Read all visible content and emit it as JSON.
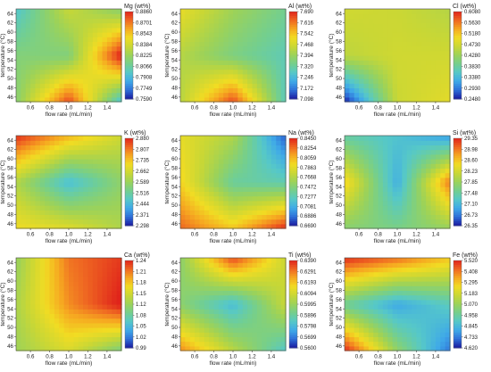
{
  "figure": {
    "background": "#ffffff"
  },
  "colormap": [
    "#1a1aa0",
    "#2f6fd8",
    "#3fa9e8",
    "#56c8c8",
    "#74cf8e",
    "#9bd25a",
    "#c9d735",
    "#f1dc23",
    "#f6a821",
    "#ef6722",
    "#e0241b"
  ],
  "chart_data": [
    {
      "type": "heatmap",
      "title": "Mg (wt%)",
      "xlabel": "flow rate (mL/min)",
      "ylabel": "temperature (°C)",
      "xlim": [
        0.45,
        1.55
      ],
      "ylim": [
        45,
        65
      ],
      "xticks": [
        "0.6",
        "0.8",
        "1.0",
        "1.2",
        "1.4"
      ],
      "yticks": [
        "46",
        "48",
        "50",
        "52",
        "54",
        "56",
        "58",
        "60",
        "62",
        "64"
      ],
      "x": [
        0.5,
        1.0,
        1.5
      ],
      "y": [
        45,
        55,
        65
      ],
      "z": [
        [
          0.822,
          0.88,
          0.8
        ],
        [
          0.815,
          0.814,
          0.882
        ],
        [
          0.799,
          0.835,
          0.818
        ]
      ],
      "colorbar_ticks": [
        "0.8860",
        "0.8701",
        "0.8543",
        "0.8384",
        "0.8225",
        "0.8066",
        "0.7908",
        "0.7749",
        "0.7590"
      ],
      "colorbar_range": [
        0.759,
        0.886
      ]
    },
    {
      "type": "heatmap",
      "title": "Al (wt%)",
      "xlabel": "flow rate (mL/min)",
      "ylabel": "temperature (°C)",
      "xlim": [
        0.45,
        1.55
      ],
      "ylim": [
        45,
        65
      ],
      "xticks": [
        "0.6",
        "0.8",
        "1.0",
        "1.2",
        "1.4"
      ],
      "yticks": [
        "46",
        "48",
        "50",
        "52",
        "54",
        "56",
        "58",
        "60",
        "62",
        "64"
      ],
      "x": [
        0.5,
        1.0,
        1.5
      ],
      "y": [
        45,
        55,
        65
      ],
      "z": [
        [
          7.45,
          7.66,
          7.32
        ],
        [
          7.42,
          7.35,
          7.3
        ],
        [
          7.49,
          7.4,
          7.34
        ]
      ],
      "colorbar_ticks": [
        "7.690",
        "7.616",
        "7.542",
        "7.468",
        "7.394",
        "7.320",
        "7.246",
        "7.172",
        "7.098"
      ],
      "colorbar_range": [
        7.098,
        7.69
      ]
    },
    {
      "type": "heatmap",
      "title": "Cl (wt%)",
      "xlabel": "flow rate (mL/min)",
      "ylabel": "temperature (°C)",
      "xlim": [
        0.45,
        1.55
      ],
      "ylim": [
        45,
        65
      ],
      "xticks": [
        "0.6",
        "0.8",
        "1.0",
        "1.2",
        "1.4"
      ],
      "yticks": [
        "46",
        "48",
        "50",
        "52",
        "54",
        "56",
        "58",
        "60",
        "62",
        "64"
      ],
      "x": [
        0.5,
        1.0,
        1.5
      ],
      "y": [
        45,
        55,
        65
      ],
      "z": [
        [
          0.265,
          0.465,
          0.485
        ],
        [
          0.455,
          0.47,
          0.47
        ],
        [
          0.47,
          0.465,
          0.45
        ]
      ],
      "colorbar_ticks": [
        "0.6080",
        "0.5630",
        "0.5180",
        "0.4730",
        "0.4280",
        "0.3830",
        "0.3380",
        "0.2930",
        "0.2480"
      ],
      "colorbar_range": [
        0.248,
        0.608
      ]
    },
    {
      "type": "heatmap",
      "title": "K (wt%)",
      "xlabel": "flow rate (mL/min)",
      "ylabel": "temperature (°C)",
      "xlim": [
        0.45,
        1.55
      ],
      "ylim": [
        45,
        65
      ],
      "xticks": [
        "0.6",
        "0.8",
        "1.0",
        "1.2",
        "1.4"
      ],
      "yticks": [
        "46",
        "48",
        "50",
        "52",
        "54",
        "56",
        "58",
        "60",
        "62",
        "64"
      ],
      "x": [
        0.5,
        1.0,
        1.5
      ],
      "y": [
        45,
        55,
        65
      ],
      "z": [
        [
          2.7,
          2.68,
          2.62
        ],
        [
          2.6,
          2.45,
          2.56
        ],
        [
          2.86,
          2.75,
          2.66
        ]
      ],
      "colorbar_ticks": [
        "2.880",
        "2.807",
        "2.735",
        "2.662",
        "2.589",
        "2.516",
        "2.444",
        "2.371",
        "2.298"
      ],
      "colorbar_range": [
        2.298,
        2.88
      ]
    },
    {
      "type": "heatmap",
      "title": "Na (wt%)",
      "xlabel": "flow rate (mL/min)",
      "ylabel": "temperature (°C)",
      "xlim": [
        0.45,
        1.55
      ],
      "ylim": [
        45,
        65
      ],
      "xticks": [
        "0.6",
        "0.8",
        "1.0",
        "1.2",
        "1.4"
      ],
      "yticks": [
        "46",
        "48",
        "50",
        "52",
        "54",
        "56",
        "58",
        "60",
        "62",
        "64"
      ],
      "x": [
        0.5,
        1.0,
        1.5
      ],
      "y": [
        45,
        55,
        65
      ],
      "z": [
        [
          0.825,
          0.8,
          0.84
        ],
        [
          0.79,
          0.735,
          0.73
        ],
        [
          0.785,
          0.765,
          0.69
        ]
      ],
      "colorbar_ticks": [
        "0.8450",
        "0.8254",
        "0.8059",
        "0.7863",
        "0.7668",
        "0.7472",
        "0.7277",
        "0.7081",
        "0.6886",
        "0.6690"
      ],
      "colorbar_range": [
        0.669,
        0.845
      ]
    },
    {
      "type": "heatmap",
      "title": "Si (wt%)",
      "xlabel": "flow rate (mL/min)",
      "ylabel": "temperature (°C)",
      "xlim": [
        0.45,
        1.55
      ],
      "ylim": [
        45,
        65
      ],
      "xticks": [
        "0.6",
        "0.8",
        "1.0",
        "1.2",
        "1.4"
      ],
      "yticks": [
        "46",
        "48",
        "50",
        "52",
        "54",
        "56",
        "58",
        "60",
        "62",
        "64"
      ],
      "x": [
        0.5,
        1.0,
        1.5
      ],
      "y": [
        45,
        55,
        65
      ],
      "z": [
        [
          27.7,
          27.6,
          27.8
        ],
        [
          28.4,
          27.0,
          28.8
        ],
        [
          27.4,
          27.2,
          26.9
        ]
      ],
      "colorbar_ticks": [
        "29.35",
        "28.98",
        "28.60",
        "28.23",
        "27.85",
        "27.48",
        "27.10",
        "26.73",
        "26.35"
      ],
      "colorbar_range": [
        26.35,
        29.35
      ]
    },
    {
      "type": "heatmap",
      "title": "Ca (wt%)",
      "xlabel": "flow rate (mL/min)",
      "ylabel": "temperature (°C)",
      "xlim": [
        0.45,
        1.55
      ],
      "ylim": [
        45,
        65
      ],
      "xticks": [
        "0.6",
        "0.8",
        "1.0",
        "1.2",
        "1.4"
      ],
      "yticks": [
        "46",
        "48",
        "50",
        "52",
        "54",
        "56",
        "58",
        "60",
        "62",
        "64"
      ],
      "x": [
        0.5,
        1.0,
        1.5
      ],
      "y": [
        45,
        55,
        65
      ],
      "z": [
        [
          1.12,
          1.15,
          1.1
        ],
        [
          1.13,
          1.2,
          1.24
        ],
        [
          1.12,
          1.21,
          1.23
        ]
      ],
      "colorbar_ticks": [
        "1.24",
        "1.21",
        "1.18",
        "1.15",
        "1.12",
        "1.08",
        "1.05",
        "1.02",
        "0.99"
      ],
      "colorbar_range": [
        0.99,
        1.24
      ]
    },
    {
      "type": "heatmap",
      "title": "Ti (wt%)",
      "xlabel": "flow rate (mL/min)",
      "ylabel": "temperature (°C)",
      "xlim": [
        0.45,
        1.55
      ],
      "ylim": [
        45,
        65
      ],
      "xticks": [
        "0.6",
        "0.8",
        "1.0",
        "1.2",
        "1.4"
      ],
      "yticks": [
        "46",
        "48",
        "50",
        "52",
        "54",
        "56",
        "58",
        "60",
        "62",
        "64"
      ],
      "x": [
        0.5,
        1.0,
        1.5
      ],
      "y": [
        45,
        55,
        65
      ],
      "z": [
        [
          0.625,
          0.605,
          0.585
        ],
        [
          0.595,
          0.58,
          0.605
        ],
        [
          0.6,
          0.635,
          0.61
        ]
      ],
      "colorbar_ticks": [
        "0.6390",
        "0.6291",
        "0.6193",
        "0.6094",
        "0.5995",
        "0.5896",
        "0.5798",
        "0.5699",
        "0.5600"
      ],
      "colorbar_range": [
        0.56,
        0.639
      ]
    },
    {
      "type": "heatmap",
      "title": "Fe (wt%)",
      "xlabel": "flow rate (mL/min)",
      "ylabel": "temperature (°C)",
      "xlim": [
        0.45,
        1.55
      ],
      "ylim": [
        45,
        65
      ],
      "xticks": [
        "0.6",
        "0.8",
        "1.0",
        "1.2",
        "1.4"
      ],
      "yticks": [
        "46",
        "48",
        "50",
        "52",
        "54",
        "56",
        "58",
        "60",
        "62",
        "64"
      ],
      "x": [
        0.5,
        1.0,
        1.5
      ],
      "y": [
        45,
        55,
        65
      ],
      "z": [
        [
          5.48,
          5.05,
          4.75
        ],
        [
          4.95,
          4.8,
          4.9
        ],
        [
          5.5,
          5.42,
          5.3
        ]
      ],
      "colorbar_ticks": [
        "5.520",
        "5.408",
        "5.295",
        "5.183",
        "5.070",
        "4.958",
        "4.845",
        "4.733",
        "4.620"
      ],
      "colorbar_range": [
        4.62,
        5.52
      ]
    }
  ]
}
